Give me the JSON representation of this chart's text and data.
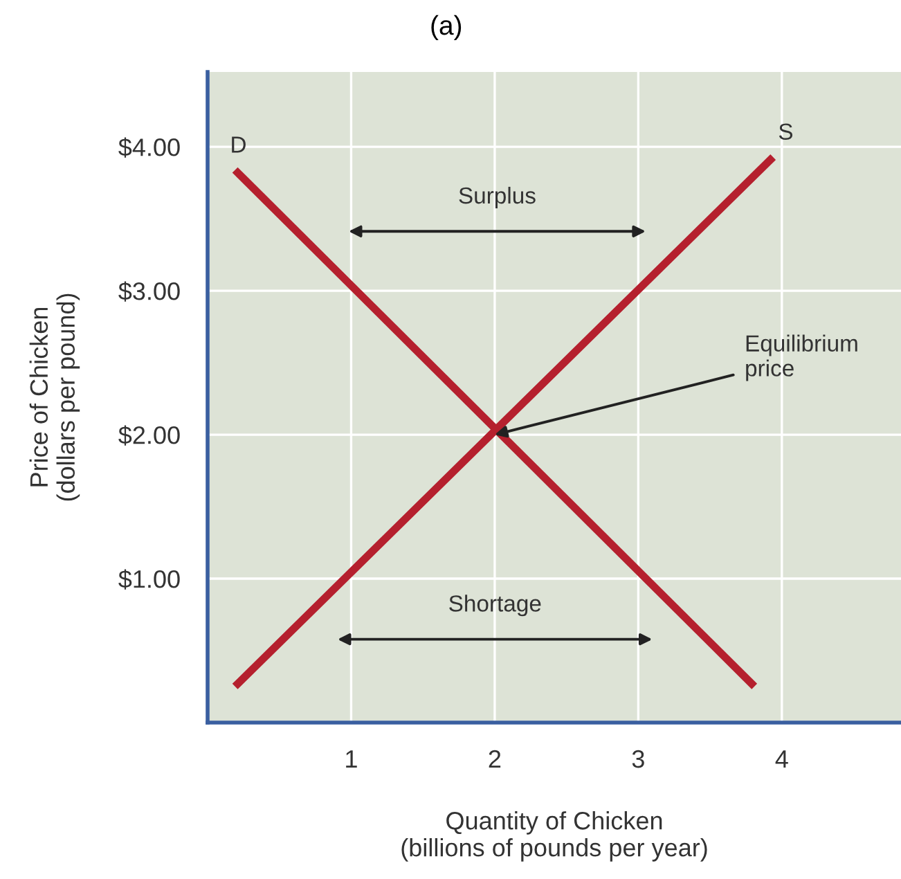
{
  "chart_data": {
    "type": "line",
    "title": "(a)",
    "xlabel": "Quantity of Chicken\n(billions of pounds per year)",
    "ylabel": "Price of Chicken\n(dollars per pound)",
    "series": [
      {
        "name": "D",
        "color": "#b5202e",
        "x": [
          0.21,
          3.79
        ],
        "values": [
          3.82,
          0.27
        ]
      },
      {
        "name": "S",
        "color": "#b5202e",
        "x": [
          0.21,
          3.92
        ],
        "values": [
          0.27,
          3.91
        ]
      }
    ],
    "annotations": [
      "Surplus",
      "Shortage",
      {
        "text": "Equilibrium\nprice",
        "x": 2,
        "y": 2
      }
    ],
    "xlim": [
      0,
      4.83
    ],
    "ylim": [
      0,
      4.52
    ],
    "xticks": [
      1,
      2,
      3,
      4
    ],
    "yticks": [
      {
        "value": 1,
        "label": "$1.00"
      },
      {
        "value": 2,
        "label": "$2.00"
      },
      {
        "value": 3,
        "label": "$3.00"
      },
      {
        "value": 4,
        "label": "$4.00"
      }
    ],
    "grid": true,
    "marker": "none",
    "line_style": "solid",
    "legend": false
  }
}
